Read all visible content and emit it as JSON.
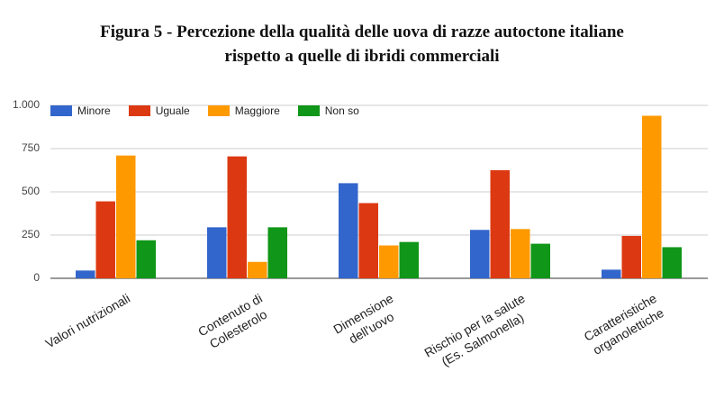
{
  "chart_data": {
    "type": "bar",
    "title": "Figura 5 - Percezione della qualità delle uova di razze autoctone italiane\nrispetto a quelle di ibridi commerciali",
    "categories": [
      "Valori nutrizionali",
      "Contenuto di\nColesterolo",
      "Dimensione\ndell'uovo",
      "Rischio per la salute\n(Es. Salmonella)",
      "Caratteristiche\norganolettiche"
    ],
    "series": [
      {
        "name": "Minore",
        "color": "#3366cc",
        "values": [
          45,
          295,
          550,
          280,
          50
        ]
      },
      {
        "name": "Uguale",
        "color": "#dc3912",
        "values": [
          445,
          705,
          435,
          625,
          245
        ]
      },
      {
        "name": "Maggiore",
        "color": "#ff9900",
        "values": [
          710,
          95,
          190,
          285,
          940
        ]
      },
      {
        "name": "Non so",
        "color": "#109618",
        "values": [
          220,
          295,
          210,
          200,
          180
        ]
      }
    ],
    "ylim": [
      0,
      1000
    ],
    "yticks": [
      0,
      250,
      500,
      750,
      {
        "value": 1000,
        "label": "1.000"
      }
    ],
    "grid": true,
    "legend": "top-left"
  }
}
